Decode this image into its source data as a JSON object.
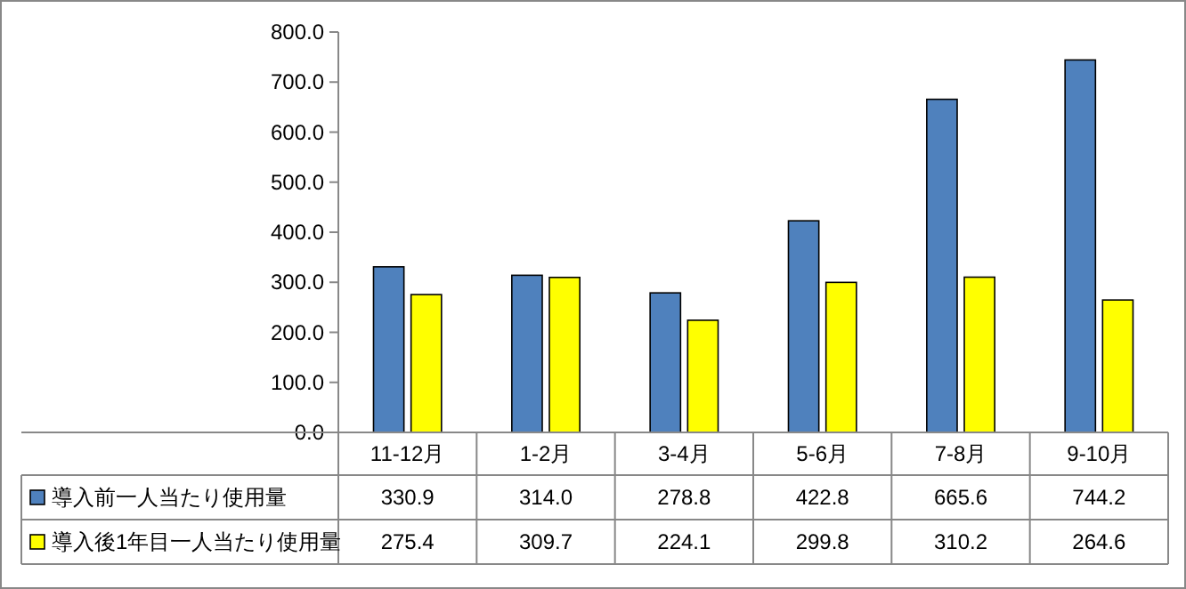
{
  "chart_data": {
    "type": "bar",
    "categories": [
      "11-12月",
      "1-2月",
      "3-4月",
      "5-6月",
      "7-8月",
      "9-10月"
    ],
    "series": [
      {
        "name": "導入前一人当たり使用量",
        "color": "#4f81bd",
        "values": [
          330.9,
          314.0,
          278.8,
          422.8,
          665.6,
          744.2
        ],
        "value_labels": [
          "330.9",
          "314.0",
          "278.8",
          "422.8",
          "665.6",
          "744.2"
        ]
      },
      {
        "name": "導入後1年目一人当たり使用量",
        "color": "#ffff00",
        "values": [
          275.4,
          309.7,
          224.1,
          299.8,
          310.2,
          264.6
        ],
        "value_labels": [
          "275.4",
          "309.7",
          "224.1",
          "299.8",
          "310.2",
          "264.6"
        ]
      }
    ],
    "ylim": [
      0,
      800
    ],
    "yticks": [
      {
        "value": 0,
        "label": "0.0"
      },
      {
        "value": 100,
        "label": "100.0"
      },
      {
        "value": 200,
        "label": "200.0"
      },
      {
        "value": 300,
        "label": "300.0"
      },
      {
        "value": 400,
        "label": "400.0"
      },
      {
        "value": 500,
        "label": "500.0"
      },
      {
        "value": 600,
        "label": "600.0"
      },
      {
        "value": 700,
        "label": "700.0"
      },
      {
        "value": 800,
        "label": "800.0"
      }
    ],
    "grid": false,
    "legend": "bottom"
  }
}
